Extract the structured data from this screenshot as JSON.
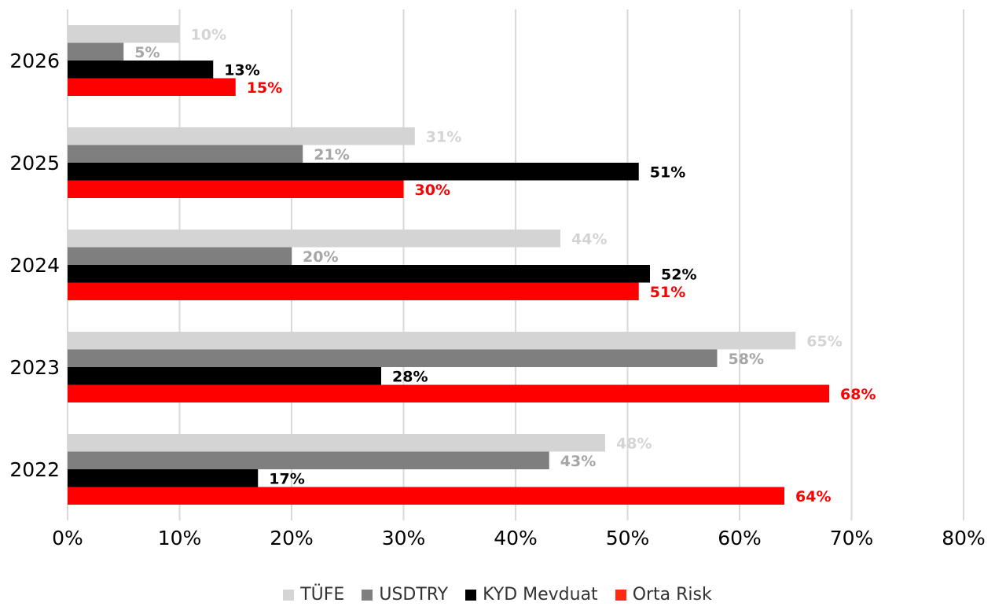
{
  "chart_data": {
    "type": "bar",
    "orientation": "horizontal",
    "categories": [
      "2026",
      "2025",
      "2024",
      "2023",
      "2022"
    ],
    "series": [
      {
        "name": "TÜFE",
        "color": "#d4d4d4",
        "values": [
          10,
          31,
          44,
          65,
          48
        ]
      },
      {
        "name": "USDTRY",
        "color": "#7f7f7f",
        "values": [
          5,
          21,
          20,
          58,
          43
        ]
      },
      {
        "name": "KYD Mevduat",
        "color": "#000000",
        "values": [
          13,
          51,
          52,
          28,
          17
        ]
      },
      {
        "name": "Orta Risk",
        "color": "#ff0000",
        "values": [
          15,
          30,
          51,
          68,
          64
        ]
      }
    ],
    "data_labels": [
      [
        "10%",
        "31%",
        "44%",
        "65%",
        "48%"
      ],
      [
        "5%",
        "21%",
        "20%",
        "58%",
        "43%"
      ],
      [
        "13%",
        "51%",
        "52%",
        "28%",
        "17%"
      ],
      [
        "15%",
        "30%",
        "51%",
        "68%",
        "64%"
      ]
    ],
    "label_colors": [
      "#d4d4d4",
      "#a6a6a6",
      "#000000",
      "#ff0000"
    ],
    "x_ticks": [
      "0%",
      "10%",
      "20%",
      "30%",
      "40%",
      "50%",
      "60%",
      "70%",
      "80%"
    ],
    "xlim": [
      0,
      80
    ],
    "grid": "vertical",
    "legend_position": "bottom"
  }
}
